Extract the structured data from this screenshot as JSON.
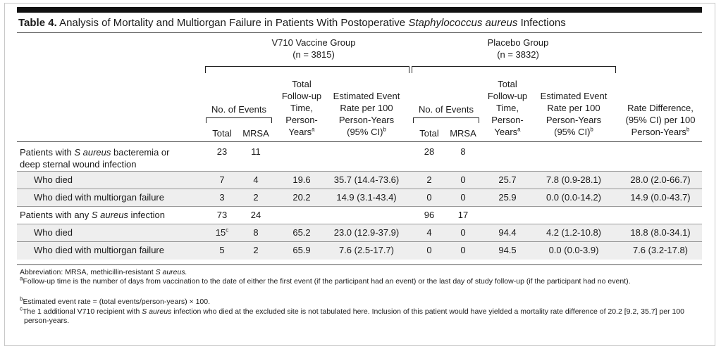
{
  "title": {
    "label": "Table 4.",
    "text_pre": " Analysis of Mortality and Multiorgan Failure in Patients With Postoperative ",
    "text_ital": "Staphylococcus aureus",
    "text_post": " Infections"
  },
  "groups": {
    "vaccine": {
      "name": "V710 Vaccine Group",
      "n": "(n = 3815)"
    },
    "placebo": {
      "name": "Placebo Group",
      "n": "(n = 3832)"
    }
  },
  "headers": {
    "no_events": "No. of Events",
    "total": "Total",
    "mrsa": "MRSA",
    "followup_l1": "Total",
    "followup_l2": "Follow-up",
    "followup_l3": "Time,",
    "followup_l4": "Person-",
    "followup_l5": "Years",
    "followup_sup": "a",
    "rate_l1": "Estimated Event",
    "rate_l2": "Rate per 100",
    "rate_l3": "Person-Years",
    "rate_l4": "(95% CI)",
    "rate_sup": "b",
    "diff_l1": "Rate Difference,",
    "diff_l2": "(95% CI) per 100",
    "diff_l3": "Person-Years",
    "diff_sup": "b"
  },
  "rows": [
    {
      "label_pre": "Patients with ",
      "label_ital": "S aureus",
      "label_post": " bacteremia or",
      "label_l2": "deep sternal wound infection",
      "v_total": "23",
      "v_total_sup": "",
      "v_mrsa": "11",
      "v_fu": "",
      "v_rate": "",
      "p_total": "28",
      "p_mrsa": "8",
      "p_fu": "",
      "p_rate": "",
      "diff": ""
    },
    {
      "label_pre": "Who died",
      "label_ital": "",
      "label_post": "",
      "label_l2": "",
      "v_total": "7",
      "v_total_sup": "",
      "v_mrsa": "4",
      "v_fu": "19.6",
      "v_rate": "35.7 (14.4-73.6)",
      "p_total": "2",
      "p_mrsa": "0",
      "p_fu": "25.7",
      "p_rate": "7.8 (0.9-28.1)",
      "diff": "28.0 (2.0-66.7)"
    },
    {
      "label_pre": "Who died with multiorgan failure",
      "label_ital": "",
      "label_post": "",
      "label_l2": "",
      "v_total": "3",
      "v_total_sup": "",
      "v_mrsa": "2",
      "v_fu": "20.2",
      "v_rate": "14.9 (3.1-43.4)",
      "p_total": "0",
      "p_mrsa": "0",
      "p_fu": "25.9",
      "p_rate": "0.0 (0.0-14.2)",
      "diff": "14.9 (0.0-43.7)"
    },
    {
      "label_pre": "Patients with any ",
      "label_ital": "S aureus",
      "label_post": " infection",
      "label_l2": "",
      "v_total": "73",
      "v_total_sup": "",
      "v_mrsa": "24",
      "v_fu": "",
      "v_rate": "",
      "p_total": "96",
      "p_mrsa": "17",
      "p_fu": "",
      "p_rate": "",
      "diff": ""
    },
    {
      "label_pre": "Who died",
      "label_ital": "",
      "label_post": "",
      "label_l2": "",
      "v_total": "15",
      "v_total_sup": "c",
      "v_mrsa": "8",
      "v_fu": "65.2",
      "v_rate": "23.0 (12.9-37.9)",
      "p_total": "4",
      "p_mrsa": "0",
      "p_fu": "94.4",
      "p_rate": "4.2 (1.2-10.8)",
      "diff": "18.8 (8.0-34.1)"
    },
    {
      "label_pre": "Who died with multiorgan failure",
      "label_ital": "",
      "label_post": "",
      "label_l2": "",
      "v_total": "5",
      "v_total_sup": "",
      "v_mrsa": "2",
      "v_fu": "65.9",
      "v_rate": "7.6 (2.5-17.7)",
      "p_total": "0",
      "p_mrsa": "0",
      "p_fu": "94.5",
      "p_rate": "0.0 (0.0-3.9)",
      "diff": "7.6 (3.2-17.8)"
    }
  ],
  "footnotes": {
    "abbr_pre": "Abbreviation: MRSA, methicillin-resistant ",
    "abbr_ital": "S aureus.",
    "a_sup": "a",
    "a_text": "Follow-up time is the number of days from vaccination to the date of either the first event (if the participant had an event) or the last day of study follow-up (if the participant had no event).",
    "b_sup": "b",
    "b_text": "Estimated event rate = (total events/person-years) × 100.",
    "c_sup": "c",
    "c_text_pre": "The 1 additional V710 recipient with ",
    "c_text_ital": "S aureus",
    "c_text_post": " infection who died at the excluded site is not tabulated here. Inclusion of this patient would have yielded a mortality rate difference of 20.2 [9.2, 35.7] per 100 person-years."
  }
}
